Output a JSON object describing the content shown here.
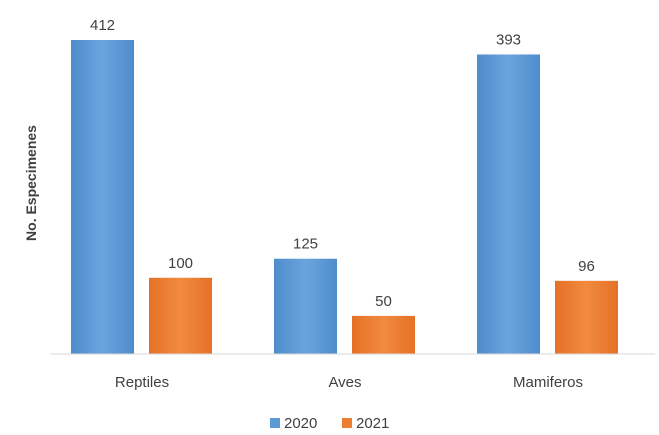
{
  "chart_data": {
    "type": "bar",
    "categories": [
      "Reptiles",
      "Aves",
      "Mamiferos"
    ],
    "series": [
      {
        "name": "2020",
        "values": [
          412,
          125,
          393
        ],
        "color": "#5B9BD5"
      },
      {
        "name": "2021",
        "values": [
          100,
          50,
          96
        ],
        "color": "#ED7D31"
      }
    ],
    "title": "",
    "xlabel": "",
    "ylabel": "No. Especimenes",
    "ylim": [
      0,
      412
    ],
    "grid": false,
    "legend_position": "bottom"
  }
}
